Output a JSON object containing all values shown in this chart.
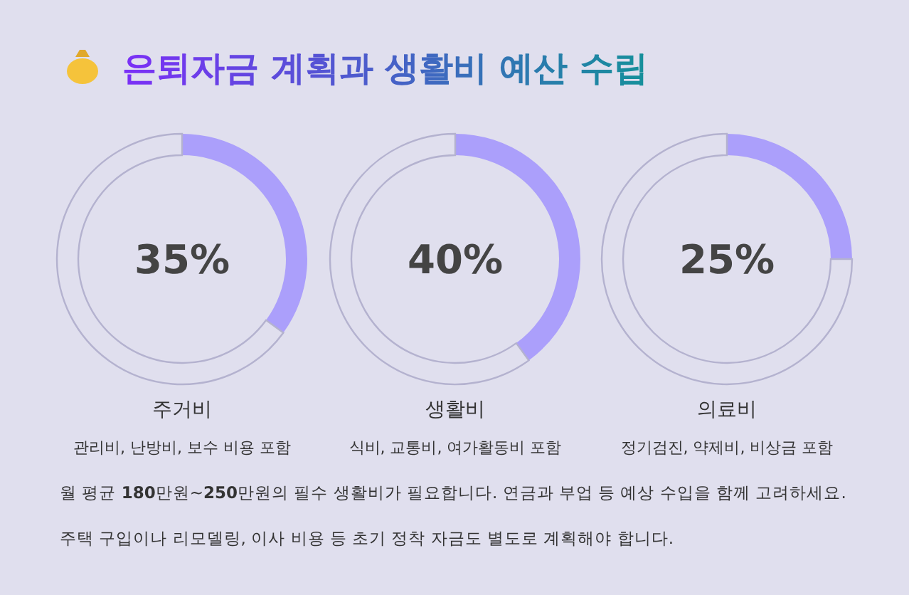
{
  "chart_data": [
    {
      "type": "other",
      "title": "은퇴자금 계획과 생활비 예산 수립",
      "annotations": [
        "월 평균 180만원~250만원의 필수 생활비가 필요합니다. 연금과 부업 등 예상 수입을 함께 고려하세요.",
        "주택 구입이나 리모델링, 이사 비용 등 초기 정착 자금도 별도로 계획해야 합니다."
      ]
    },
    {
      "type": "donut",
      "title": "주거비",
      "subtitle": "관리비, 난방비, 보수 비용 포함",
      "categories": [
        null,
        null
      ],
      "values": [
        35,
        65
      ],
      "annotations": [
        "35%"
      ],
      "colors": [
        "#ab9ffb",
        "#e0dfee"
      ]
    },
    {
      "type": "donut",
      "title": "생활비",
      "subtitle": "식비, 교통비, 여가활동비 포함",
      "categories": [
        null,
        null
      ],
      "values": [
        40,
        60
      ],
      "annotations": [
        "40%"
      ],
      "colors": [
        "#ab9ffb",
        "#e0dfee"
      ]
    },
    {
      "type": "donut",
      "title": "의료비",
      "subtitle": "정기검진, 약제비, 비상금 포함",
      "categories": [
        null,
        null
      ],
      "values": [
        25,
        75
      ],
      "annotations": [
        "25%"
      ],
      "colors": [
        "#ab9ffb",
        "#e0dfee"
      ]
    }
  ]
}
